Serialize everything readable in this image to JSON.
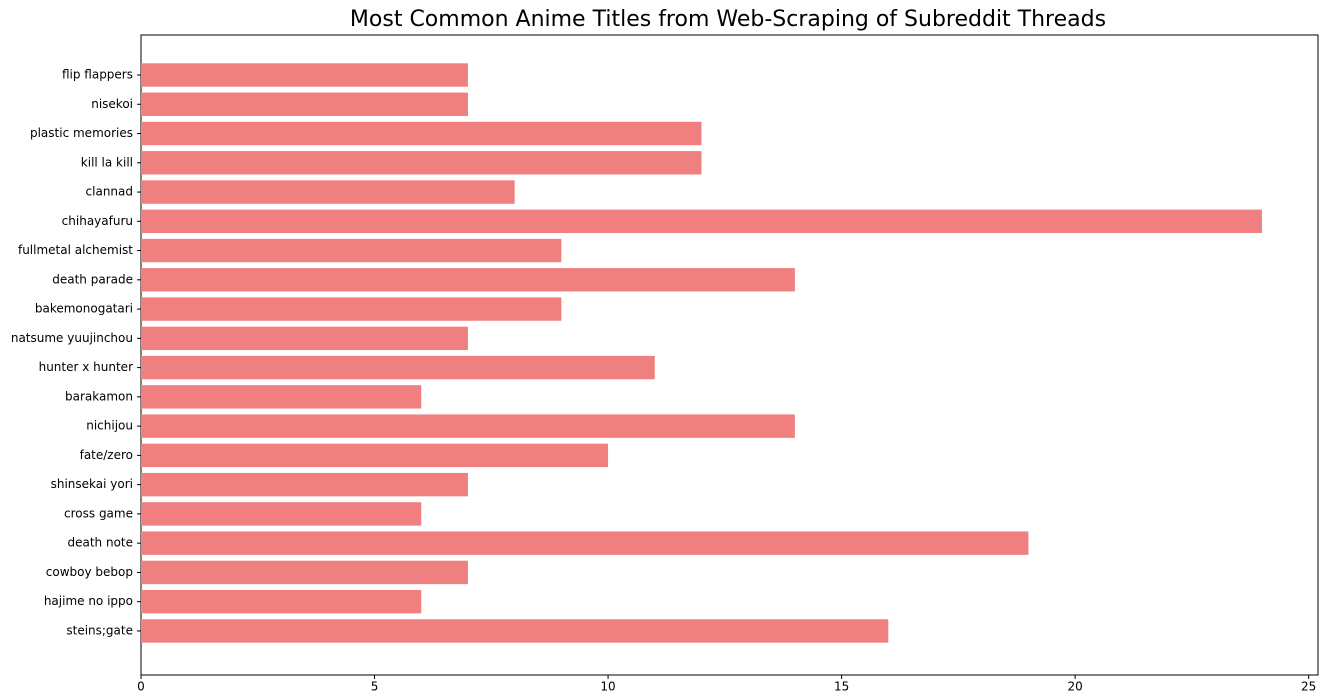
{
  "chart_data": {
    "type": "barh",
    "title": "Most Common Anime Titles from Web-Scraping of Subreddit Threads",
    "categories": [
      "flip flappers",
      "nisekoi",
      "plastic memories",
      "kill la kill",
      "clannad",
      "chihayafuru",
      "fullmetal alchemist",
      "death parade",
      "bakemonogatari",
      "natsume yuujinchou",
      "hunter x hunter",
      "barakamon",
      "nichijou",
      "fate/zero",
      "shinsekai yori",
      "cross game",
      "death note",
      "cowboy bebop",
      "hajime no ippo",
      "steins;gate"
    ],
    "values": [
      7,
      7,
      12,
      12,
      8,
      24,
      9,
      14,
      9,
      7,
      11,
      6,
      14,
      10,
      7,
      6,
      19,
      7,
      6,
      16
    ],
    "color": "#f08080",
    "xlim": [
      0,
      25.2
    ],
    "xticks": [
      0,
      5,
      10,
      15,
      20,
      25
    ]
  }
}
